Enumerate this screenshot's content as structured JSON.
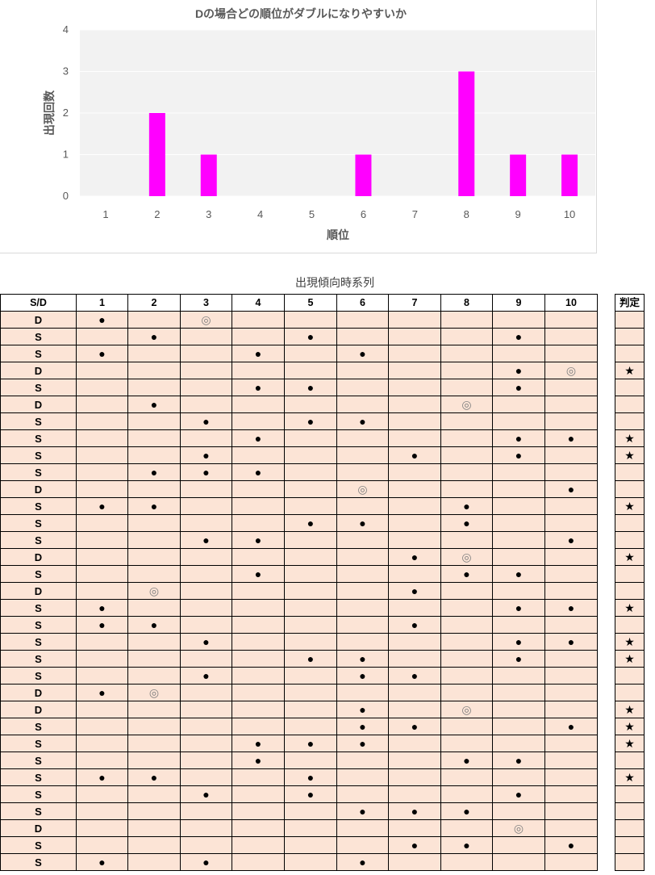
{
  "chart_data": {
    "type": "bar",
    "title": "Dの場合どの順位がダブルになりやすいか",
    "xlabel": "順位",
    "ylabel": "出現回数",
    "categories": [
      "1",
      "2",
      "3",
      "4",
      "5",
      "6",
      "7",
      "8",
      "9",
      "10"
    ],
    "values": [
      0,
      2,
      1,
      0,
      0,
      1,
      0,
      3,
      1,
      1
    ],
    "ylim": [
      0,
      4
    ],
    "yticks": [
      0,
      1,
      2,
      3,
      4
    ],
    "bar_color": "#ff00ff",
    "plot_background": "#f2f2f2",
    "grid": true
  },
  "table": {
    "title": "出現傾向時系列",
    "headers": [
      "S/D",
      "1",
      "2",
      "3",
      "4",
      "5",
      "6",
      "7",
      "8",
      "9",
      "10"
    ],
    "judge_header": "判定",
    "rows": [
      {
        "sd": "D",
        "marks": [
          "●",
          "",
          "◎",
          "",
          "",
          "",
          "",
          "",
          "",
          ""
        ],
        "judge": ""
      },
      {
        "sd": "S",
        "marks": [
          "",
          "●",
          "",
          "",
          "●",
          "",
          "",
          "",
          "●",
          ""
        ],
        "judge": ""
      },
      {
        "sd": "S",
        "marks": [
          "●",
          "",
          "",
          "●",
          "",
          "●",
          "",
          "",
          "",
          ""
        ],
        "judge": ""
      },
      {
        "sd": "D",
        "marks": [
          "",
          "",
          "",
          "",
          "",
          "",
          "",
          "",
          "●",
          "◎"
        ],
        "judge": "★"
      },
      {
        "sd": "S",
        "marks": [
          "",
          "",
          "",
          "●",
          "●",
          "",
          "",
          "",
          "●",
          ""
        ],
        "judge": ""
      },
      {
        "sd": "D",
        "marks": [
          "",
          "●",
          "",
          "",
          "",
          "",
          "",
          "◎",
          "",
          ""
        ],
        "judge": ""
      },
      {
        "sd": "S",
        "marks": [
          "",
          "",
          "●",
          "",
          "●",
          "●",
          "",
          "",
          "",
          ""
        ],
        "judge": ""
      },
      {
        "sd": "S",
        "marks": [
          "",
          "",
          "",
          "●",
          "",
          "",
          "",
          "",
          "●",
          "●"
        ],
        "judge": "★"
      },
      {
        "sd": "S",
        "marks": [
          "",
          "",
          "●",
          "",
          "",
          "",
          "●",
          "",
          "●",
          ""
        ],
        "judge": "★"
      },
      {
        "sd": "S",
        "marks": [
          "",
          "●",
          "●",
          "●",
          "",
          "",
          "",
          "",
          "",
          ""
        ],
        "judge": ""
      },
      {
        "sd": "D",
        "marks": [
          "",
          "",
          "",
          "",
          "",
          "◎",
          "",
          "",
          "",
          "●"
        ],
        "judge": ""
      },
      {
        "sd": "S",
        "marks": [
          "●",
          "●",
          "",
          "",
          "",
          "",
          "",
          "●",
          "",
          ""
        ],
        "judge": "★"
      },
      {
        "sd": "S",
        "marks": [
          "",
          "",
          "",
          "",
          "●",
          "●",
          "",
          "●",
          "",
          ""
        ],
        "judge": ""
      },
      {
        "sd": "S",
        "marks": [
          "",
          "",
          "●",
          "●",
          "",
          "",
          "",
          "",
          "",
          "●"
        ],
        "judge": ""
      },
      {
        "sd": "D",
        "marks": [
          "",
          "",
          "",
          "",
          "",
          "",
          "●",
          "◎",
          "",
          ""
        ],
        "judge": "★"
      },
      {
        "sd": "S",
        "marks": [
          "",
          "",
          "",
          "●",
          "",
          "",
          "",
          "●",
          "●",
          ""
        ],
        "judge": ""
      },
      {
        "sd": "D",
        "marks": [
          "",
          "◎",
          "",
          "",
          "",
          "",
          "●",
          "",
          "",
          ""
        ],
        "judge": ""
      },
      {
        "sd": "S",
        "marks": [
          "●",
          "",
          "",
          "",
          "",
          "",
          "",
          "",
          "●",
          "●"
        ],
        "judge": "★"
      },
      {
        "sd": "S",
        "marks": [
          "●",
          "●",
          "",
          "",
          "",
          "",
          "●",
          "",
          "",
          ""
        ],
        "judge": ""
      },
      {
        "sd": "S",
        "marks": [
          "",
          "",
          "●",
          "",
          "",
          "",
          "",
          "",
          "●",
          "●"
        ],
        "judge": "★"
      },
      {
        "sd": "S",
        "marks": [
          "",
          "",
          "",
          "",
          "●",
          "●",
          "",
          "",
          "●",
          ""
        ],
        "judge": "★"
      },
      {
        "sd": "S",
        "marks": [
          "",
          "",
          "●",
          "",
          "",
          "●",
          "●",
          "",
          "",
          ""
        ],
        "judge": ""
      },
      {
        "sd": "D",
        "marks": [
          "●",
          "◎",
          "",
          "",
          "",
          "",
          "",
          "",
          "",
          ""
        ],
        "judge": ""
      },
      {
        "sd": "D",
        "marks": [
          "",
          "",
          "",
          "",
          "",
          "●",
          "",
          "◎",
          "",
          ""
        ],
        "judge": "★"
      },
      {
        "sd": "S",
        "marks": [
          "",
          "",
          "",
          "",
          "",
          "●",
          "●",
          "",
          "",
          "●"
        ],
        "judge": "★"
      },
      {
        "sd": "S",
        "marks": [
          "",
          "",
          "",
          "●",
          "●",
          "●",
          "",
          "",
          "",
          ""
        ],
        "judge": "★"
      },
      {
        "sd": "S",
        "marks": [
          "",
          "",
          "",
          "●",
          "",
          "",
          "",
          "●",
          "●",
          ""
        ],
        "judge": ""
      },
      {
        "sd": "S",
        "marks": [
          "●",
          "●",
          "",
          "",
          "●",
          "",
          "",
          "",
          "",
          ""
        ],
        "judge": "★"
      },
      {
        "sd": "S",
        "marks": [
          "",
          "",
          "●",
          "",
          "●",
          "",
          "",
          "",
          "●",
          ""
        ],
        "judge": ""
      },
      {
        "sd": "S",
        "marks": [
          "",
          "",
          "",
          "",
          "",
          "●",
          "●",
          "●",
          "",
          ""
        ],
        "judge": ""
      },
      {
        "sd": "D",
        "marks": [
          "",
          "",
          "",
          "",
          "",
          "",
          "",
          "",
          "◎",
          ""
        ],
        "judge": ""
      },
      {
        "sd": "S",
        "marks": [
          "",
          "",
          "",
          "",
          "",
          "",
          "●",
          "●",
          "",
          "●"
        ],
        "judge": ""
      },
      {
        "sd": "S",
        "marks": [
          "●",
          "",
          "●",
          "",
          "",
          "●",
          "",
          "",
          "",
          ""
        ],
        "judge": ""
      }
    ]
  }
}
